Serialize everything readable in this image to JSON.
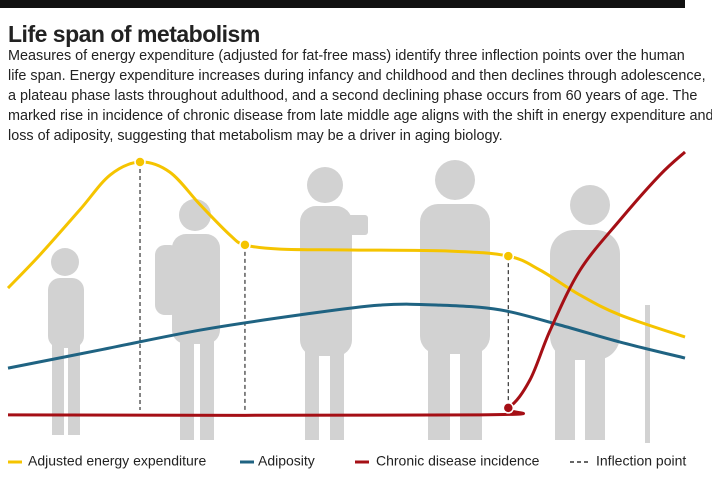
{
  "chart_data": {
    "type": "line",
    "title": "Life span of metabolism",
    "description": [
      "Measures of energy expenditure (adjusted for fat-free mass) identify three inflection points over the human",
      "life span. Energy expenditure increases during infancy and childhood and then declines through adolescence,",
      "a plateau phase lasts throughout adulthood, and a second declining phase occurs from 60 years of age. The",
      "marked rise in incidence of chronic disease from late middle age aligns with the shift in energy expenditure and",
      "loss of adiposity, suggesting that metabolism may be a driver in aging biology."
    ],
    "xlim": [
      0,
      100
    ],
    "ylim": [
      0,
      100
    ],
    "inflection_label": "Inflection point",
    "inflection_x": [
      19.5,
      35.0,
      73.9
    ],
    "series": [
      {
        "name": "Adjusted energy expenditure",
        "color": "#f5c400",
        "x": [
          0,
          4.7,
          10.6,
          15.1,
          19.5,
          23.9,
          28.4,
          32.8,
          35.0,
          40.2,
          50.5,
          65.3,
          73.9,
          78.6,
          84.5,
          90.4,
          100
        ],
        "values": [
          50.7,
          62.5,
          78.6,
          91.1,
          95.7,
          92.1,
          80.4,
          69.6,
          66.1,
          64.6,
          64.3,
          63.9,
          62.1,
          57.1,
          48.2,
          41.1,
          33.2
        ]
      },
      {
        "name": "Adiposity",
        "color": "#1f6382",
        "x": [
          0,
          13.6,
          28.4,
          43.1,
          54.9,
          63.8,
          72.7,
          81.5,
          90.4,
          100
        ],
        "values": [
          22.1,
          28.6,
          35.7,
          41.1,
          44.6,
          44.6,
          42.9,
          37.5,
          31.4,
          25.7
        ]
      },
      {
        "name": "Chronic disease incidence",
        "color": "#a50f15",
        "x": [
          0,
          69.7,
          73.9,
          77.1,
          80.1,
          84.5,
          90.4,
          96.3,
          100
        ],
        "values": [
          5.4,
          5.4,
          7.9,
          17.9,
          35.7,
          57.1,
          75.0,
          91.1,
          99.3
        ]
      }
    ]
  }
}
